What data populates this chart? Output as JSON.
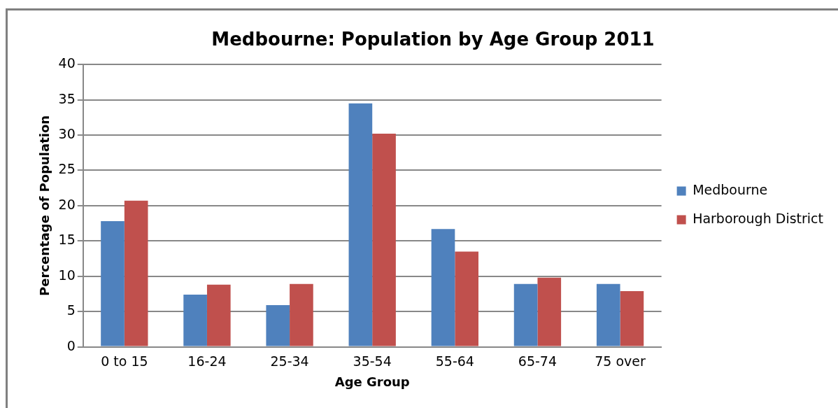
{
  "chart_data": {
    "type": "bar",
    "title": "Medbourne: Population by Age Group 2011",
    "xlabel": "Age Group",
    "ylabel": "Percentage of Population",
    "categories": [
      "0 to 15",
      "16-24",
      "25-34",
      "35-54",
      "55-64",
      "65-74",
      "75 over"
    ],
    "series": [
      {
        "name": "Medbourne",
        "color": "#4f81bd",
        "values": [
          17.8,
          7.4,
          5.9,
          34.5,
          16.7,
          8.9,
          8.9
        ]
      },
      {
        "name": "Harborough District",
        "color": "#c0504d",
        "values": [
          20.7,
          8.8,
          8.9,
          30.2,
          13.5,
          9.8,
          7.9
        ]
      }
    ],
    "ylim": [
      0,
      40
    ],
    "yticks": [
      0,
      5,
      10,
      15,
      20,
      25,
      30,
      35,
      40
    ],
    "grid": "y",
    "legend": "right"
  }
}
